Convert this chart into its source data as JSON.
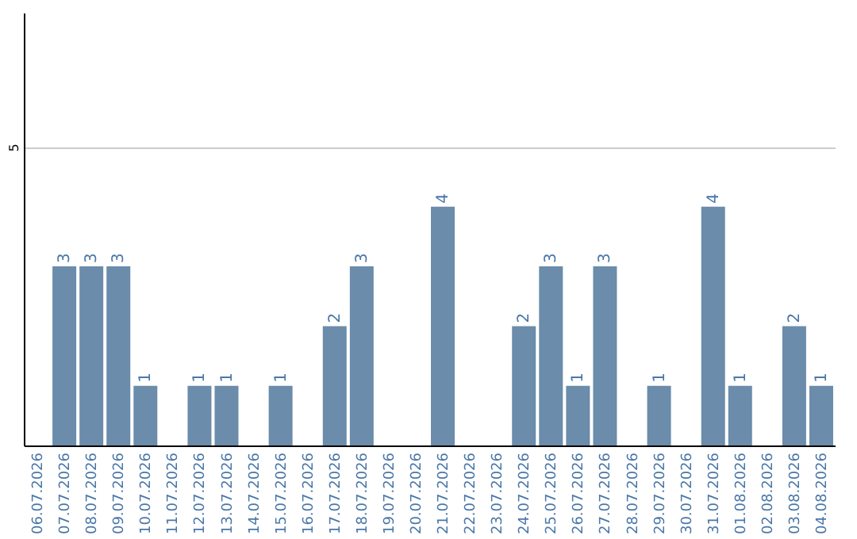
{
  "chart_data": {
    "type": "bar",
    "categories": [
      "06.07.2026",
      "07.07.2026",
      "08.07.2026",
      "09.07.2026",
      "10.07.2026",
      "11.07.2026",
      "12.07.2026",
      "13.07.2026",
      "14.07.2026",
      "15.07.2026",
      "16.07.2026",
      "17.07.2026",
      "18.07.2026",
      "19.07.2026",
      "20.07.2026",
      "21.07.2026",
      "22.07.2026",
      "23.07.2026",
      "24.07.2026",
      "25.07.2026",
      "26.07.2026",
      "27.07.2026",
      "28.07.2026",
      "29.07.2026",
      "30.07.2026",
      "31.07.2026",
      "01.08.2026",
      "02.08.2026",
      "03.08.2026",
      "04.08.2026"
    ],
    "values": [
      0,
      3,
      3,
      3,
      1,
      0,
      1,
      1,
      0,
      1,
      0,
      2,
      3,
      0,
      0,
      4,
      0,
      0,
      2,
      3,
      1,
      3,
      0,
      1,
      0,
      4,
      1,
      0,
      2,
      1
    ],
    "value_labels": [
      null,
      "3",
      "3",
      "3",
      "1",
      null,
      "1",
      "1",
      null,
      "1",
      null,
      "2",
      "3",
      null,
      null,
      "4",
      null,
      null,
      "2",
      "3",
      "1",
      "3",
      null,
      "1",
      null,
      "4",
      "1",
      null,
      "2",
      "1"
    ],
    "color": "#6b8cab",
    "ylim": [
      0,
      7.25
    ],
    "yticks": [
      5
    ],
    "grid": "y"
  }
}
